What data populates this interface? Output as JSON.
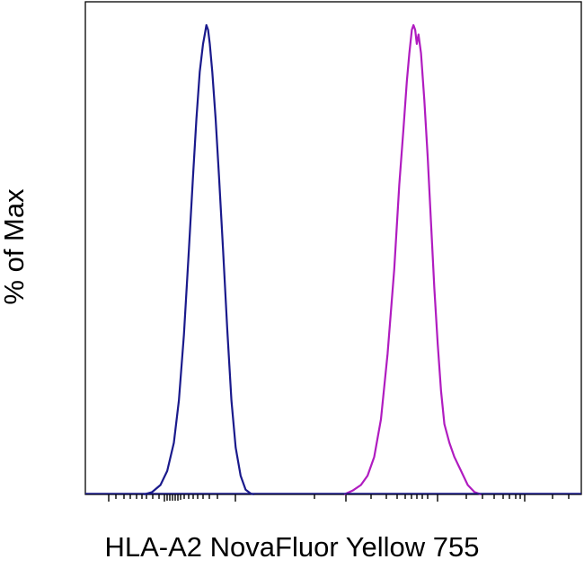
{
  "chart_data": {
    "type": "line",
    "title": "",
    "xlabel": "HLA-A2 NovaFluor Yellow 755",
    "ylabel": "% of Max",
    "x_scale": "log (biexponential display)",
    "x_tick_labels": [],
    "ylim": [
      0,
      100
    ],
    "grid": false,
    "legend": "none",
    "series": [
      {
        "color": "#1a1a8c",
        "points": [
          [
            0.0,
            0.0
          ],
          [
            0.05,
            0.5
          ],
          [
            0.1,
            2
          ],
          [
            0.14,
            5
          ],
          [
            0.18,
            11
          ],
          [
            0.21,
            20
          ],
          [
            0.24,
            34
          ],
          [
            0.27,
            52
          ],
          [
            0.295,
            68
          ],
          [
            0.315,
            80
          ],
          [
            0.335,
            90
          ],
          [
            0.355,
            96
          ],
          [
            0.365,
            98
          ],
          [
            0.375,
            100
          ],
          [
            0.385,
            99
          ],
          [
            0.395,
            96
          ],
          [
            0.41,
            90
          ],
          [
            0.43,
            80
          ],
          [
            0.45,
            68
          ],
          [
            0.475,
            52
          ],
          [
            0.5,
            35
          ],
          [
            0.525,
            20
          ],
          [
            0.55,
            10
          ],
          [
            0.58,
            4
          ],
          [
            0.61,
            1
          ],
          [
            0.64,
            0.2
          ],
          [
            0.66,
            0
          ]
        ]
      },
      {
        "color": "#b01cc0",
        "points": [
          [
            1.2,
            0.0
          ],
          [
            1.25,
            0.8
          ],
          [
            1.3,
            2
          ],
          [
            1.34,
            4
          ],
          [
            1.38,
            8
          ],
          [
            1.42,
            16
          ],
          [
            1.46,
            30
          ],
          [
            1.5,
            48
          ],
          [
            1.53,
            66
          ],
          [
            1.555,
            78
          ],
          [
            1.575,
            88
          ],
          [
            1.59,
            94
          ],
          [
            1.605,
            99
          ],
          [
            1.615,
            100
          ],
          [
            1.625,
            99
          ],
          [
            1.635,
            96
          ],
          [
            1.645,
            98
          ],
          [
            1.66,
            94
          ],
          [
            1.68,
            84
          ],
          [
            1.7,
            72
          ],
          [
            1.72,
            58
          ],
          [
            1.74,
            44
          ],
          [
            1.76,
            32
          ],
          [
            1.78,
            22
          ],
          [
            1.8,
            15
          ],
          [
            1.83,
            11
          ],
          [
            1.86,
            8
          ],
          [
            1.9,
            5
          ],
          [
            1.94,
            2
          ],
          [
            1.98,
            0.5
          ],
          [
            2.02,
            0
          ]
        ]
      }
    ]
  }
}
